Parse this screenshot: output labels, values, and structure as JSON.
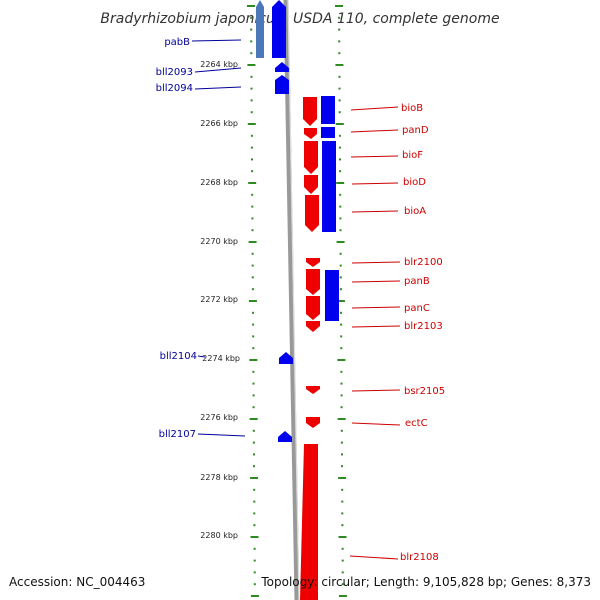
{
  "title": "Bradyrhizobium japonicum USDA 110, complete genome",
  "accession": "Accession: NC_004463",
  "summary": "Topology: circular; Length: 9,105,828 bp; Genes: 8,373",
  "colors": {
    "forward": "#ee0000",
    "reverse": "#0000ee",
    "forward_label": "#cc0000",
    "reverse_label": "#000099",
    "tick": "#2e8b22",
    "backbone": "#999999"
  },
  "scale": {
    "unit": "kbp",
    "tick_labels": [
      "2264 kbp",
      "2266 kbp",
      "2268 kbp",
      "2270 kbp",
      "2272 kbp",
      "2274 kbp",
      "2276 kbp",
      "2278 kbp",
      "2280 kbp"
    ]
  },
  "reverse_genes": [
    {
      "label": "pabB"
    },
    {
      "label": "bll2093"
    },
    {
      "label": "bll2094"
    },
    {
      "label": "bll2104"
    },
    {
      "label": "bll2107"
    }
  ],
  "forward_genes": [
    {
      "label": "bioB"
    },
    {
      "label": "panD"
    },
    {
      "label": "bioF"
    },
    {
      "label": "bioD"
    },
    {
      "label": "bioA"
    },
    {
      "label": "blr2100"
    },
    {
      "label": "panB"
    },
    {
      "label": "panC"
    },
    {
      "label": "blr2103"
    },
    {
      "label": "bsr2105"
    },
    {
      "label": "ectC"
    },
    {
      "label": "blr2108"
    }
  ]
}
